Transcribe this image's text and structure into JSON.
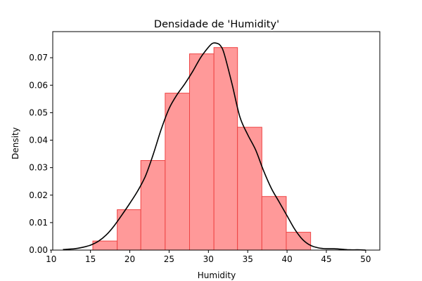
{
  "chart_data": {
    "type": "bar",
    "title": "Densidade de 'Humidity'",
    "xlabel": "Humidity",
    "ylabel": "Density",
    "xlim": [
      10.2,
      51.8
    ],
    "ylim": [
      0,
      0.0795
    ],
    "xticks": [
      "10",
      "15",
      "20",
      "25",
      "30",
      "35",
      "40",
      "45",
      "50"
    ],
    "yticks": [
      "0.00",
      "0.01",
      "0.02",
      "0.03",
      "0.04",
      "0.05",
      "0.06",
      "0.07"
    ],
    "grid": false,
    "bins": [
      {
        "x0": 15.3,
        "x1": 18.4,
        "density": 0.0033
      },
      {
        "x0": 18.4,
        "x1": 21.4,
        "density": 0.0147
      },
      {
        "x0": 21.4,
        "x1": 24.5,
        "density": 0.0326
      },
      {
        "x0": 24.5,
        "x1": 27.6,
        "density": 0.0571
      },
      {
        "x0": 27.6,
        "x1": 30.7,
        "density": 0.0714
      },
      {
        "x0": 30.7,
        "x1": 33.7,
        "density": 0.0737
      },
      {
        "x0": 33.7,
        "x1": 36.8,
        "density": 0.0447
      },
      {
        "x0": 36.8,
        "x1": 39.9,
        "density": 0.0195
      },
      {
        "x0": 39.9,
        "x1": 43.0,
        "density": 0.0065
      }
    ],
    "kde": {
      "x": [
        11.5,
        13,
        14,
        15,
        16,
        17,
        18,
        19,
        20,
        21,
        22,
        23,
        24,
        25,
        26,
        27,
        28,
        29,
        30,
        30.5,
        31,
        31.5,
        32,
        33,
        34,
        35,
        36,
        37,
        38,
        39,
        40,
        41,
        42,
        43,
        44,
        45,
        46,
        47,
        48,
        49,
        50
      ],
      "y": [
        0.0002,
        0.0005,
        0.001,
        0.0018,
        0.0032,
        0.0055,
        0.0088,
        0.0128,
        0.017,
        0.0215,
        0.027,
        0.035,
        0.044,
        0.0515,
        0.0565,
        0.0605,
        0.065,
        0.07,
        0.0738,
        0.0752,
        0.0753,
        0.0745,
        0.0715,
        0.0605,
        0.0485,
        0.042,
        0.0365,
        0.029,
        0.0225,
        0.0175,
        0.0125,
        0.0075,
        0.0038,
        0.0017,
        0.0008,
        0.0005,
        0.0005,
        0.0003,
        0.0001,
        0.0001,
        0.0
      ]
    },
    "colors": {
      "bar_fill": "#ff9999",
      "bar_edge": "#ee4444",
      "kde_line": "#000000"
    }
  }
}
